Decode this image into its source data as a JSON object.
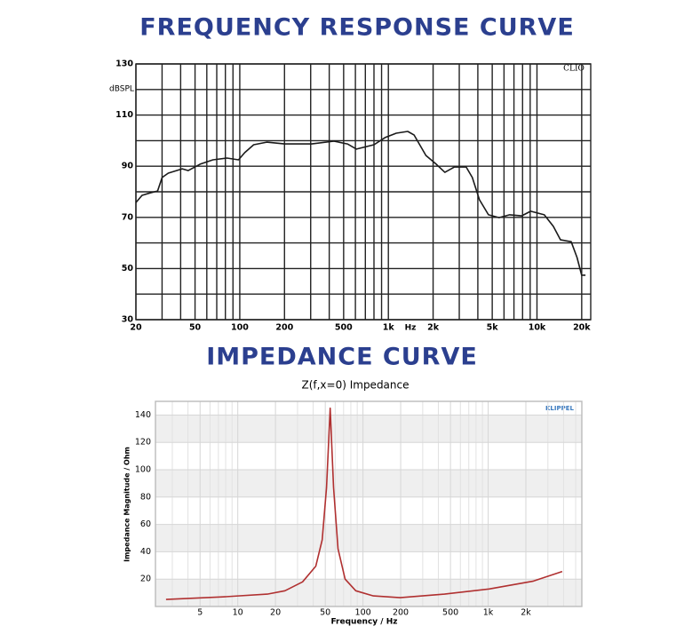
{
  "chart_data": [
    {
      "type": "line",
      "title": "FREQUENCY RESPONSE CURVE",
      "ylabel": "dBSPL",
      "xlabel": "Hz",
      "annotation": "CLIO",
      "xscale": "log",
      "color": "#1a1a1a",
      "grid": true,
      "xlim": [
        20,
        23000
      ],
      "ylim": [
        30,
        130
      ],
      "xticks": [
        20,
        50,
        100,
        200,
        500,
        {
          "value": 1000,
          "label": "1k"
        },
        {
          "value": 2000,
          "label": "2k"
        },
        {
          "value": 5000,
          "label": "5k"
        },
        {
          "value": 10000,
          "label": "10k"
        },
        {
          "value": 20000,
          "label": "20k"
        }
      ],
      "xminorticks": [
        30,
        40,
        60,
        70,
        80,
        90,
        300,
        400,
        600,
        700,
        800,
        900,
        3000,
        4000,
        6000,
        7000,
        8000,
        9000
      ],
      "yticks": [
        30,
        50,
        70,
        90,
        110,
        130
      ],
      "yminorticks": [
        40,
        60,
        80,
        100,
        120
      ],
      "x": [
        20,
        22,
        25,
        28,
        30,
        33,
        41,
        45,
        54,
        66,
        82,
        98,
        108,
        124,
        152,
        200,
        305,
        430,
        530,
        610,
        800,
        950,
        1130,
        1350,
        1490,
        1790,
        2100,
        2400,
        2780,
        3340,
        3670,
        4100,
        4720,
        5560,
        6550,
        7880,
        9070,
        11200,
        12880,
        14400,
        17000,
        18600,
        20000,
        21200
      ],
      "values": [
        75.8,
        78.6,
        79.6,
        80.3,
        85.6,
        87.3,
        89,
        88.3,
        90.8,
        92.5,
        93.2,
        92.5,
        95.3,
        98.4,
        99.4,
        98.7,
        98.7,
        99.8,
        98.7,
        96.7,
        98.4,
        101.2,
        102.9,
        103.6,
        102.2,
        94.2,
        90.8,
        87.6,
        89.7,
        89.7,
        85.6,
        76.9,
        71,
        69.9,
        71,
        70.6,
        72.4,
        71,
        66.5,
        61.2,
        60.5,
        54.3,
        47.4,
        47.4
      ]
    },
    {
      "type": "line",
      "title": "IMPEDANCE CURVE",
      "subtitle": "Z(f,x=0) Impedance",
      "xlabel": "Frequency / Hz",
      "ylabel": "Impedance Magnitude / Ohm",
      "annotation": "KLIPPEL",
      "xscale": "log",
      "color": "#b03030",
      "grid": true,
      "banded": true,
      "xlim": [
        2.2,
        5600
      ],
      "ylim": [
        0,
        150
      ],
      "xticks": [
        5,
        10,
        20,
        50,
        100,
        200,
        500,
        {
          "value": 1000,
          "label": "1k"
        },
        {
          "value": 2000,
          "label": "2k"
        }
      ],
      "xminorticks": [
        3,
        4,
        6,
        7,
        8,
        9,
        30,
        40,
        60,
        70,
        80,
        90,
        300,
        400,
        600,
        700,
        800,
        900,
        3000,
        4000,
        5000
      ],
      "yticks": [
        20,
        40,
        60,
        80,
        100,
        120,
        140
      ],
      "x": [
        2.67,
        7.6,
        17.2,
        23.8,
        32.9,
        42,
        47.2,
        51.2,
        54.7,
        58.2,
        63.2,
        72,
        87.6,
        121,
        198,
        448,
        1018,
        2300,
        3900
      ],
      "values": [
        5.1,
        7,
        9,
        11.5,
        18,
        29.5,
        48.7,
        87,
        145,
        87,
        42.3,
        20,
        11.5,
        7.7,
        6.4,
        9,
        12.8,
        18.6,
        25.6
      ]
    }
  ]
}
